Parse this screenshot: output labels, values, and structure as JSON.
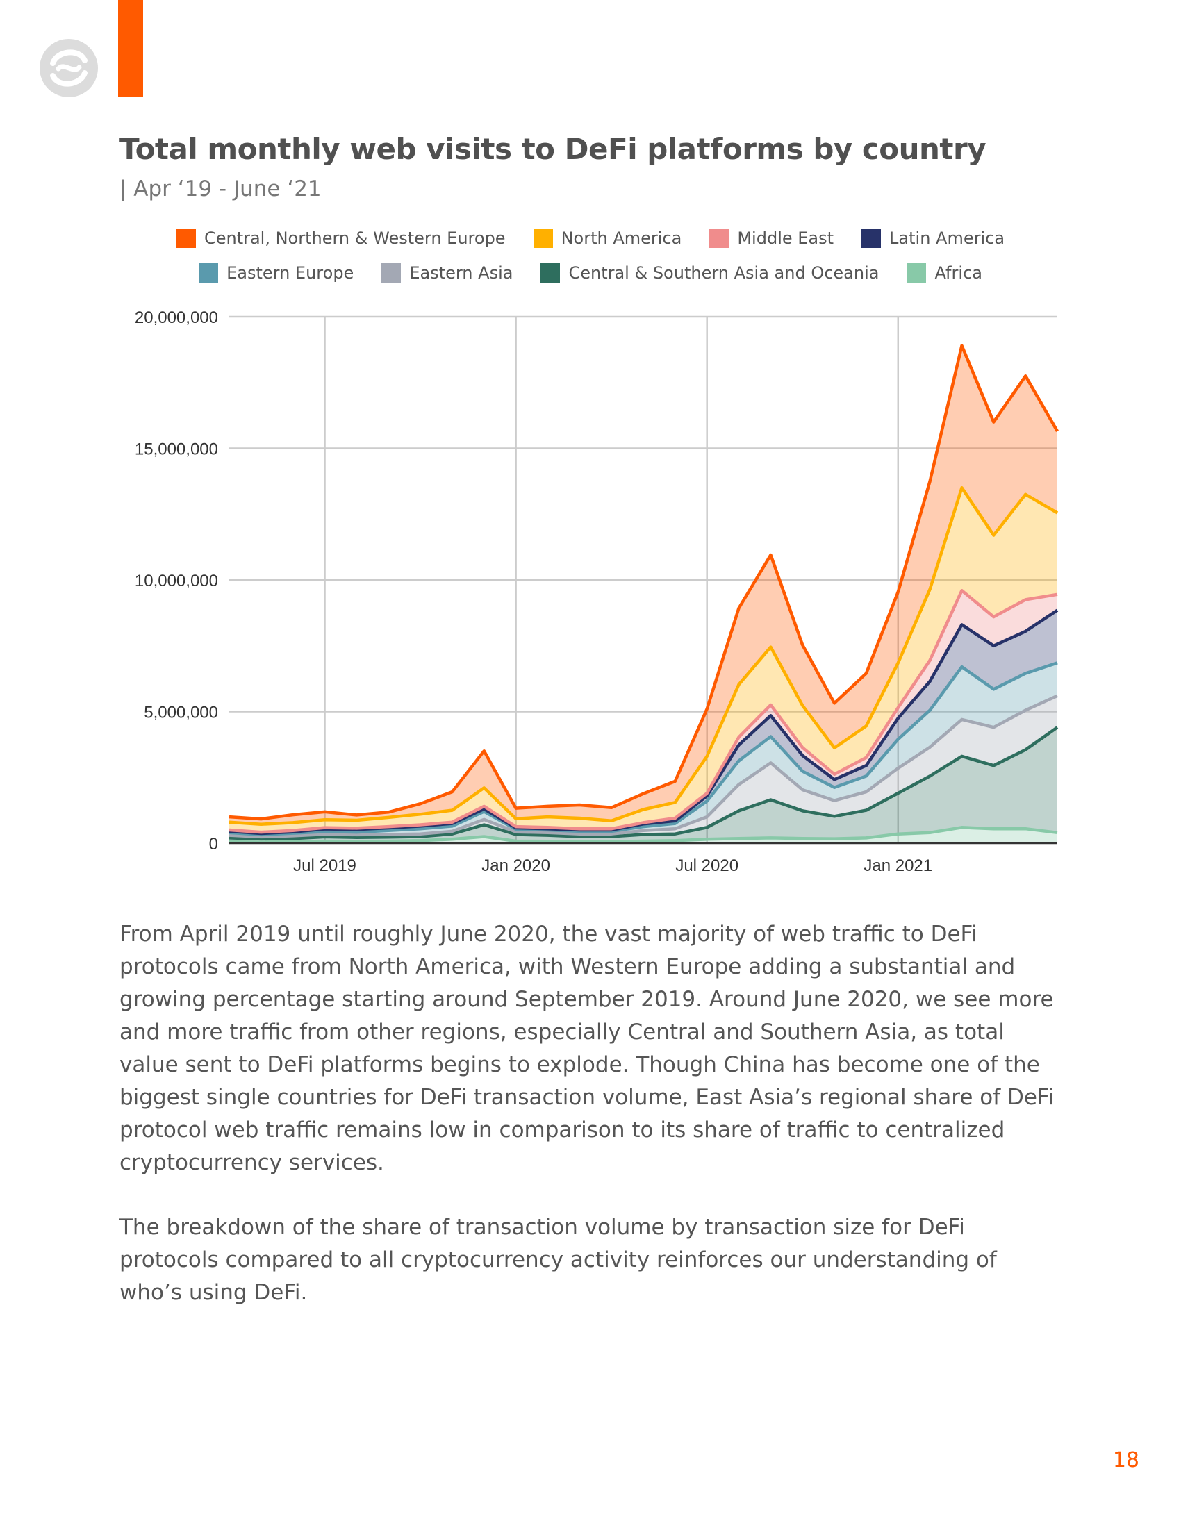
{
  "header": {
    "logo_icon": "chainalysis-logo-icon",
    "accent_color": "#ff5a00",
    "title": "Total monthly web visits to DeFi platforms by country",
    "subtitle": "| Apr ‘19 - June ‘21"
  },
  "chart_data": {
    "type": "area",
    "stacked": true,
    "title": "Total monthly web visits to DeFi platforms by country",
    "subtitle": "| Apr ‘19 - June ‘21",
    "xlabel": "",
    "ylabel": "",
    "ylim": [
      0,
      20000000
    ],
    "grid": true,
    "legend_position": "top",
    "y_ticks": [
      {
        "value": 0,
        "label": "0"
      },
      {
        "value": 5000000,
        "label": "5,000,000"
      },
      {
        "value": 10000000,
        "label": "10,000,000"
      },
      {
        "value": 15000000,
        "label": "15,000,000"
      },
      {
        "value": 20000000,
        "label": "20,000,000"
      }
    ],
    "x_ticks": [
      {
        "index": 3,
        "label": "Jul 2019"
      },
      {
        "index": 9,
        "label": "Jan 2020"
      },
      {
        "index": 15,
        "label": "Jul 2020"
      },
      {
        "index": 21,
        "label": "Jan 2021"
      }
    ],
    "categories": [
      "Apr 2019",
      "May 2019",
      "Jun 2019",
      "Jul 2019",
      "Aug 2019",
      "Sep 2019",
      "Oct 2019",
      "Nov 2019",
      "Dec 2019",
      "Jan 2020",
      "Feb 2020",
      "Mar 2020",
      "Apr 2020",
      "May 2020",
      "Jun 2020",
      "Jul 2020",
      "Aug 2020",
      "Sep 2020",
      "Oct 2020",
      "Nov 2020",
      "Dec 2020",
      "Jan 2021",
      "Feb 2021",
      "Mar 2021",
      "Apr 2021",
      "May 2021",
      "Jun 2021"
    ],
    "series": [
      {
        "name": "Africa",
        "color": "#88c9a8",
        "values": [
          50000,
          40000,
          60000,
          80000,
          70000,
          80000,
          100000,
          150000,
          250000,
          80000,
          70000,
          60000,
          60000,
          80000,
          100000,
          150000,
          180000,
          200000,
          180000,
          170000,
          200000,
          350000,
          400000,
          600000,
          550000,
          550000,
          400000
        ]
      },
      {
        "name": "Central & Southern Asia and Oceania",
        "color": "#2e6e5e",
        "values": [
          150000,
          120000,
          120000,
          160000,
          150000,
          150000,
          150000,
          200000,
          450000,
          250000,
          230000,
          190000,
          190000,
          250000,
          250000,
          450000,
          1050000,
          1450000,
          1050000,
          850000,
          1050000,
          1550000,
          2150000,
          2700000,
          2400000,
          3000000,
          4000000
        ]
      },
      {
        "name": "Eastern Asia",
        "color": "#a3a8b4",
        "values": [
          100000,
          80000,
          100000,
          100000,
          100000,
          100000,
          100000,
          100000,
          200000,
          100000,
          100000,
          100000,
          100000,
          150000,
          200000,
          400000,
          1000000,
          1400000,
          800000,
          600000,
          700000,
          950000,
          1100000,
          1400000,
          1450000,
          1500000,
          1200000
        ]
      },
      {
        "name": "Eastern Europe",
        "color": "#5a9aad",
        "values": [
          100000,
          80000,
          100000,
          100000,
          100000,
          150000,
          200000,
          200000,
          300000,
          100000,
          100000,
          100000,
          100000,
          150000,
          200000,
          600000,
          900000,
          1000000,
          700000,
          500000,
          600000,
          1100000,
          1400000,
          2000000,
          1450000,
          1400000,
          1250000
        ]
      },
      {
        "name": "Latin America",
        "color": "#273269",
        "values": [
          50000,
          50000,
          50000,
          100000,
          100000,
          100000,
          100000,
          100000,
          100000,
          50000,
          50000,
          50000,
          50000,
          100000,
          100000,
          200000,
          600000,
          800000,
          600000,
          300000,
          400000,
          800000,
          1100000,
          1600000,
          1650000,
          1600000,
          2000000
        ]
      },
      {
        "name": "Middle East",
        "color": "#f08c8c",
        "values": [
          50000,
          50000,
          50000,
          50000,
          50000,
          50000,
          50000,
          50000,
          100000,
          50000,
          50000,
          50000,
          50000,
          50000,
          100000,
          100000,
          300000,
          400000,
          300000,
          200000,
          300000,
          400000,
          800000,
          1300000,
          1100000,
          1200000,
          600000
        ]
      },
      {
        "name": "North America",
        "color": "#ffb000",
        "values": [
          300000,
          300000,
          300000,
          300000,
          300000,
          350000,
          400000,
          450000,
          700000,
          300000,
          400000,
          400000,
          300000,
          500000,
          600000,
          1400000,
          2000000,
          2200000,
          1600000,
          1000000,
          1200000,
          1700000,
          2700000,
          3900000,
          3100000,
          4000000,
          3100000
        ]
      },
      {
        "name": "Central, Northern & Western Europe",
        "color": "#ff5a00",
        "values": [
          200000,
          200000,
          300000,
          300000,
          200000,
          200000,
          400000,
          700000,
          1400000,
          400000,
          400000,
          500000,
          500000,
          600000,
          800000,
          1800000,
          2900000,
          3500000,
          2300000,
          1700000,
          2000000,
          2700000,
          4100000,
          5400000,
          4300000,
          4500000,
          3100000
        ]
      }
    ]
  },
  "body": {
    "paragraphs": [
      "From April 2019 until roughly June 2020, the vast majority of web traffic to DeFi protocols came from North America, with Western Europe adding a substantial and growing percentage starting around September 2019. Around June 2020, we see more and more traffic from other regions, especially Central and Southern Asia, as total value sent to DeFi platforms begins to explode. Though China has become one of the biggest single countries for DeFi transaction volume, East Asia’s regional share of DeFi protocol web traffic remains low in comparison to its share of traffic to centralized cryptocurrency services.",
      "The breakdown of the share of transaction volume by transaction size for DeFi protocols compared to all cryptocurrency activity reinforces our understanding of who’s using DeFi."
    ]
  },
  "footer": {
    "page_number": "18"
  }
}
